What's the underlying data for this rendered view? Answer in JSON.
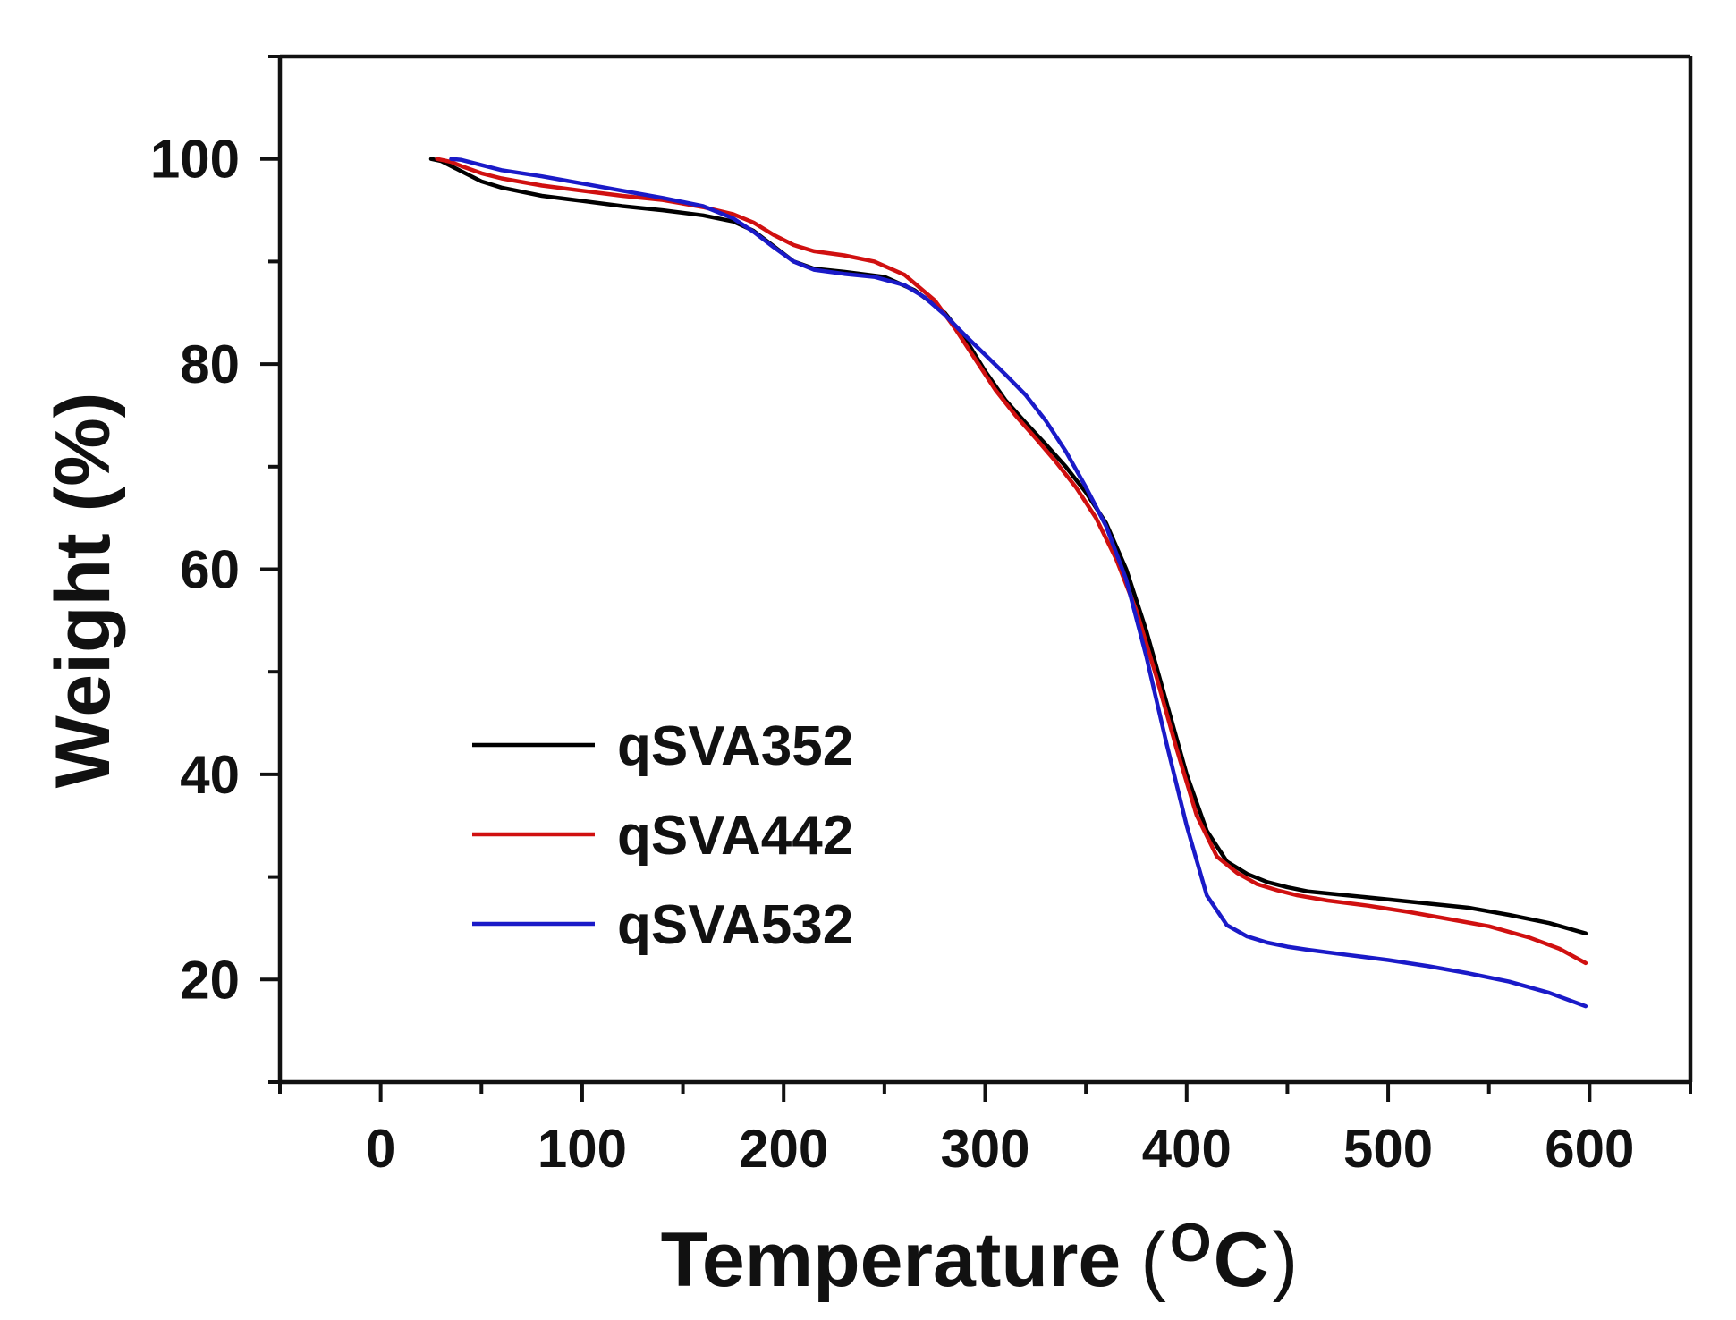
{
  "chart_data": {
    "type": "line",
    "title": "",
    "xlabel": "Temperature",
    "xlabel_unit_superscript": "O",
    "xlabel_unit": "C",
    "xlabel_open_paren": "(",
    "xlabel_close_paren": ")",
    "ylabel": "Weight (%)",
    "xlim": [
      -50,
      650
    ],
    "ylim": [
      10,
      110
    ],
    "xticks": [
      0,
      100,
      200,
      300,
      400,
      500,
      600
    ],
    "yticks": [
      20,
      40,
      60,
      80,
      100
    ],
    "xtick_labels": [
      "0",
      "100",
      "200",
      "300",
      "400",
      "500",
      "600"
    ],
    "ytick_labels": [
      "20",
      "40",
      "60",
      "80",
      "100"
    ],
    "x_minor_step": 50,
    "y_minor_step": 10,
    "grid": false,
    "legend_position": "center-left",
    "series": [
      {
        "name": "qSVA352",
        "color": "#000000",
        "points": [
          [
            25,
            100
          ],
          [
            30,
            99.8
          ],
          [
            40,
            98.8
          ],
          [
            50,
            97.8
          ],
          [
            60,
            97.2
          ],
          [
            80,
            96.4
          ],
          [
            100,
            95.9
          ],
          [
            120,
            95.4
          ],
          [
            140,
            95
          ],
          [
            160,
            94.5
          ],
          [
            175,
            93.9
          ],
          [
            185,
            93
          ],
          [
            195,
            91.5
          ],
          [
            205,
            90
          ],
          [
            215,
            89.3
          ],
          [
            230,
            89
          ],
          [
            250,
            88.5
          ],
          [
            265,
            87.2
          ],
          [
            280,
            85
          ],
          [
            290,
            82.5
          ],
          [
            300,
            79.3
          ],
          [
            310,
            76.5
          ],
          [
            320,
            74.3
          ],
          [
            330,
            72.2
          ],
          [
            340,
            70
          ],
          [
            350,
            67.5
          ],
          [
            360,
            64.5
          ],
          [
            370,
            60
          ],
          [
            380,
            54
          ],
          [
            390,
            47
          ],
          [
            400,
            40
          ],
          [
            410,
            34.5
          ],
          [
            420,
            31.5
          ],
          [
            430,
            30.3
          ],
          [
            440,
            29.5
          ],
          [
            450,
            29
          ],
          [
            460,
            28.6
          ],
          [
            480,
            28.2
          ],
          [
            500,
            27.8
          ],
          [
            520,
            27.4
          ],
          [
            540,
            27
          ],
          [
            560,
            26.3
          ],
          [
            580,
            25.5
          ],
          [
            598,
            24.5
          ]
        ]
      },
      {
        "name": "qSVA442",
        "color": "#d01010",
        "points": [
          [
            28,
            100
          ],
          [
            35,
            99.7
          ],
          [
            40,
            99.3
          ],
          [
            50,
            98.6
          ],
          [
            60,
            98.1
          ],
          [
            80,
            97.4
          ],
          [
            100,
            96.9
          ],
          [
            120,
            96.4
          ],
          [
            140,
            96
          ],
          [
            160,
            95.3
          ],
          [
            175,
            94.6
          ],
          [
            185,
            93.8
          ],
          [
            195,
            92.6
          ],
          [
            205,
            91.6
          ],
          [
            215,
            91
          ],
          [
            230,
            90.6
          ],
          [
            245,
            90
          ],
          [
            260,
            88.7
          ],
          [
            275,
            86.2
          ],
          [
            285,
            83.5
          ],
          [
            295,
            80.5
          ],
          [
            305,
            77.5
          ],
          [
            315,
            75
          ],
          [
            325,
            72.8
          ],
          [
            335,
            70.5
          ],
          [
            345,
            68
          ],
          [
            355,
            65
          ],
          [
            365,
            61
          ],
          [
            375,
            56
          ],
          [
            385,
            49.5
          ],
          [
            395,
            42.5
          ],
          [
            405,
            36
          ],
          [
            415,
            32
          ],
          [
            425,
            30.4
          ],
          [
            435,
            29.3
          ],
          [
            445,
            28.7
          ],
          [
            455,
            28.2
          ],
          [
            470,
            27.7
          ],
          [
            490,
            27.2
          ],
          [
            510,
            26.6
          ],
          [
            530,
            25.9
          ],
          [
            550,
            25.2
          ],
          [
            570,
            24.1
          ],
          [
            585,
            23
          ],
          [
            598,
            21.6
          ]
        ]
      },
      {
        "name": "qSVA532",
        "color": "#1a1ac8",
        "points": [
          [
            35,
            100
          ],
          [
            40,
            99.9
          ],
          [
            50,
            99.4
          ],
          [
            60,
            98.9
          ],
          [
            80,
            98.3
          ],
          [
            100,
            97.6
          ],
          [
            120,
            96.9
          ],
          [
            140,
            96.2
          ],
          [
            160,
            95.4
          ],
          [
            175,
            94.2
          ],
          [
            185,
            92.9
          ],
          [
            195,
            91.4
          ],
          [
            205,
            90
          ],
          [
            215,
            89.2
          ],
          [
            230,
            88.8
          ],
          [
            245,
            88.5
          ],
          [
            260,
            87.7
          ],
          [
            270,
            86.5
          ],
          [
            280,
            84.8
          ],
          [
            290,
            82.8
          ],
          [
            300,
            80.9
          ],
          [
            310,
            79
          ],
          [
            320,
            77
          ],
          [
            330,
            74.5
          ],
          [
            340,
            71.5
          ],
          [
            350,
            68
          ],
          [
            360,
            64.2
          ],
          [
            370,
            59
          ],
          [
            380,
            51.5
          ],
          [
            390,
            43
          ],
          [
            400,
            35
          ],
          [
            410,
            28.2
          ],
          [
            420,
            25.3
          ],
          [
            430,
            24.2
          ],
          [
            440,
            23.6
          ],
          [
            450,
            23.2
          ],
          [
            460,
            22.9
          ],
          [
            480,
            22.4
          ],
          [
            500,
            21.9
          ],
          [
            520,
            21.3
          ],
          [
            540,
            20.6
          ],
          [
            560,
            19.8
          ],
          [
            580,
            18.7
          ],
          [
            598,
            17.4
          ]
        ]
      }
    ]
  }
}
